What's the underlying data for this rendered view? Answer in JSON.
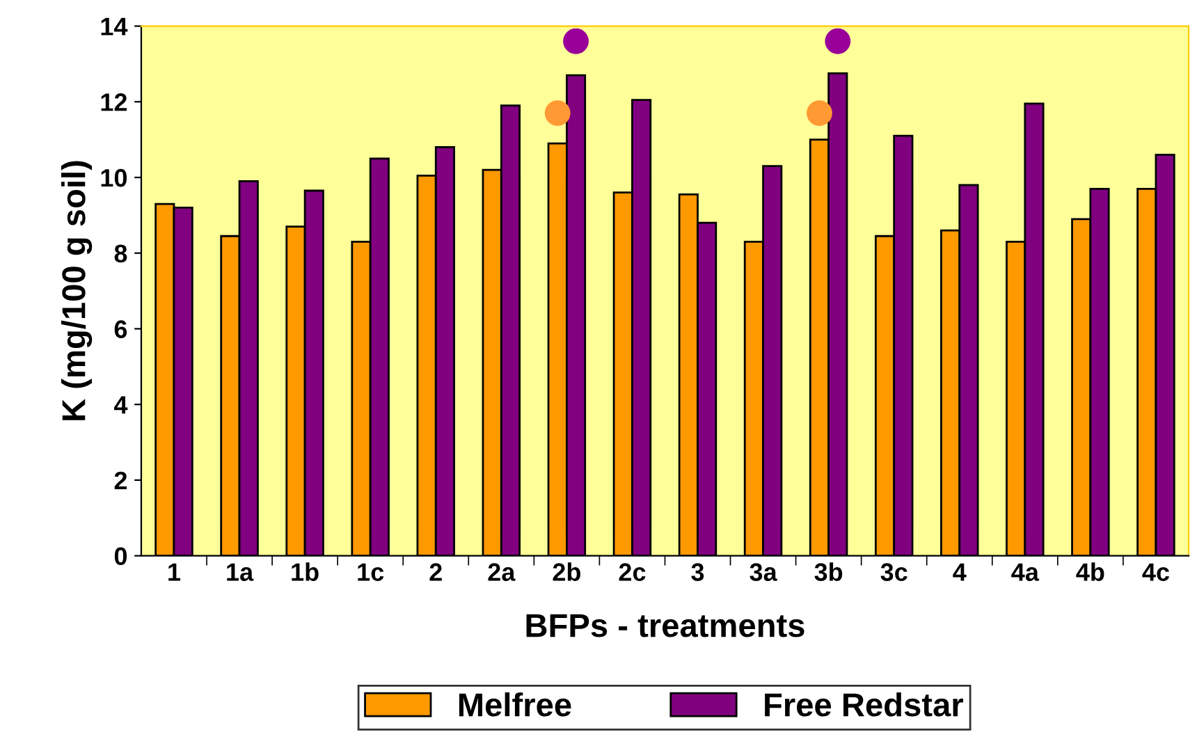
{
  "chart_data": {
    "type": "bar",
    "xlabel": "BFPs - treatments",
    "ylabel": "K (mg/100 g soil)",
    "categories": [
      "1",
      "1a",
      "1b",
      "1c",
      "2",
      "2a",
      "2b",
      "2c",
      "3",
      "3a",
      "3b",
      "3c",
      "4",
      "4a",
      "4b",
      "4c"
    ],
    "series": [
      {
        "name": "Melfree",
        "color": "#ff9900",
        "values": [
          9.3,
          8.45,
          8.7,
          8.3,
          10.05,
          10.2,
          10.9,
          9.6,
          9.55,
          8.3,
          11.0,
          8.45,
          8.6,
          8.3,
          8.9,
          9.7
        ]
      },
      {
        "name": "Free Redstar",
        "color": "#800080",
        "values": [
          9.2,
          9.9,
          9.65,
          10.5,
          10.8,
          11.9,
          12.7,
          12.05,
          8.8,
          10.3,
          12.75,
          11.1,
          9.8,
          11.95,
          9.7,
          10.6
        ]
      },
      {
        "type": "scatter",
        "color": "#ff9933",
        "x": [
          "2b",
          "3b"
        ],
        "values": [
          11.7,
          11.7
        ]
      },
      {
        "type": "scatter",
        "color": "#990099",
        "x": [
          "2b",
          "3b"
        ],
        "values": [
          13.6,
          13.6
        ]
      }
    ],
    "ylim": [
      0,
      14
    ],
    "yticks": [
      0,
      2,
      4,
      6,
      8,
      10,
      12,
      14
    ],
    "grid": false,
    "legend": "bottom",
    "marker": "circle"
  }
}
